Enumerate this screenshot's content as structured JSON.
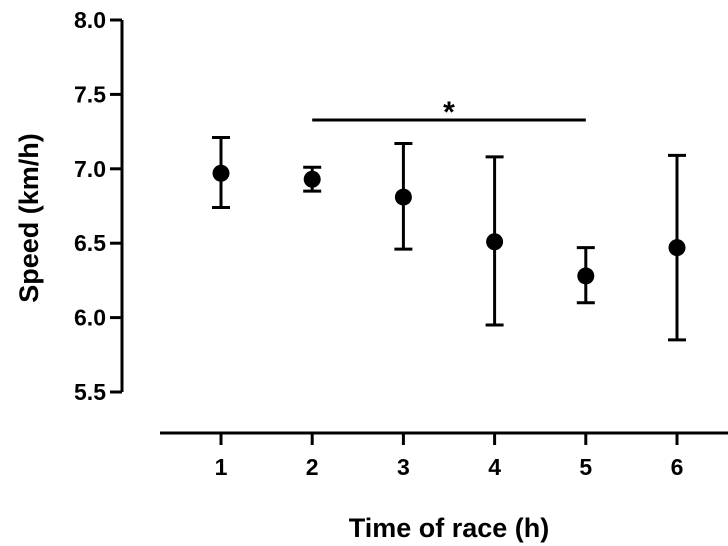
{
  "chart_data": {
    "type": "scatter",
    "xlabel": "Time of race (h)",
    "ylabel": "Speed (km/h)",
    "x_ticks": [
      "1",
      "2",
      "3",
      "4",
      "5",
      "6"
    ],
    "y_ticks": [
      "5.5",
      "6.0",
      "6.5",
      "7.0",
      "7.5",
      "8.0"
    ],
    "ylim": [
      5.5,
      8.0
    ],
    "grid": false,
    "series": [
      {
        "x": [
          1,
          2,
          3,
          4,
          5,
          6
        ],
        "y": [
          6.97,
          6.93,
          6.81,
          6.51,
          6.28,
          6.47
        ],
        "error_low": [
          6.74,
          6.85,
          6.46,
          5.95,
          6.1,
          5.85
        ],
        "error_high": [
          7.21,
          7.01,
          7.17,
          7.08,
          6.47,
          7.09
        ]
      }
    ],
    "annotations": [
      {
        "text": "*",
        "x_start": 2,
        "x_end": 5
      }
    ],
    "colors": {
      "marks": "#000000"
    }
  }
}
